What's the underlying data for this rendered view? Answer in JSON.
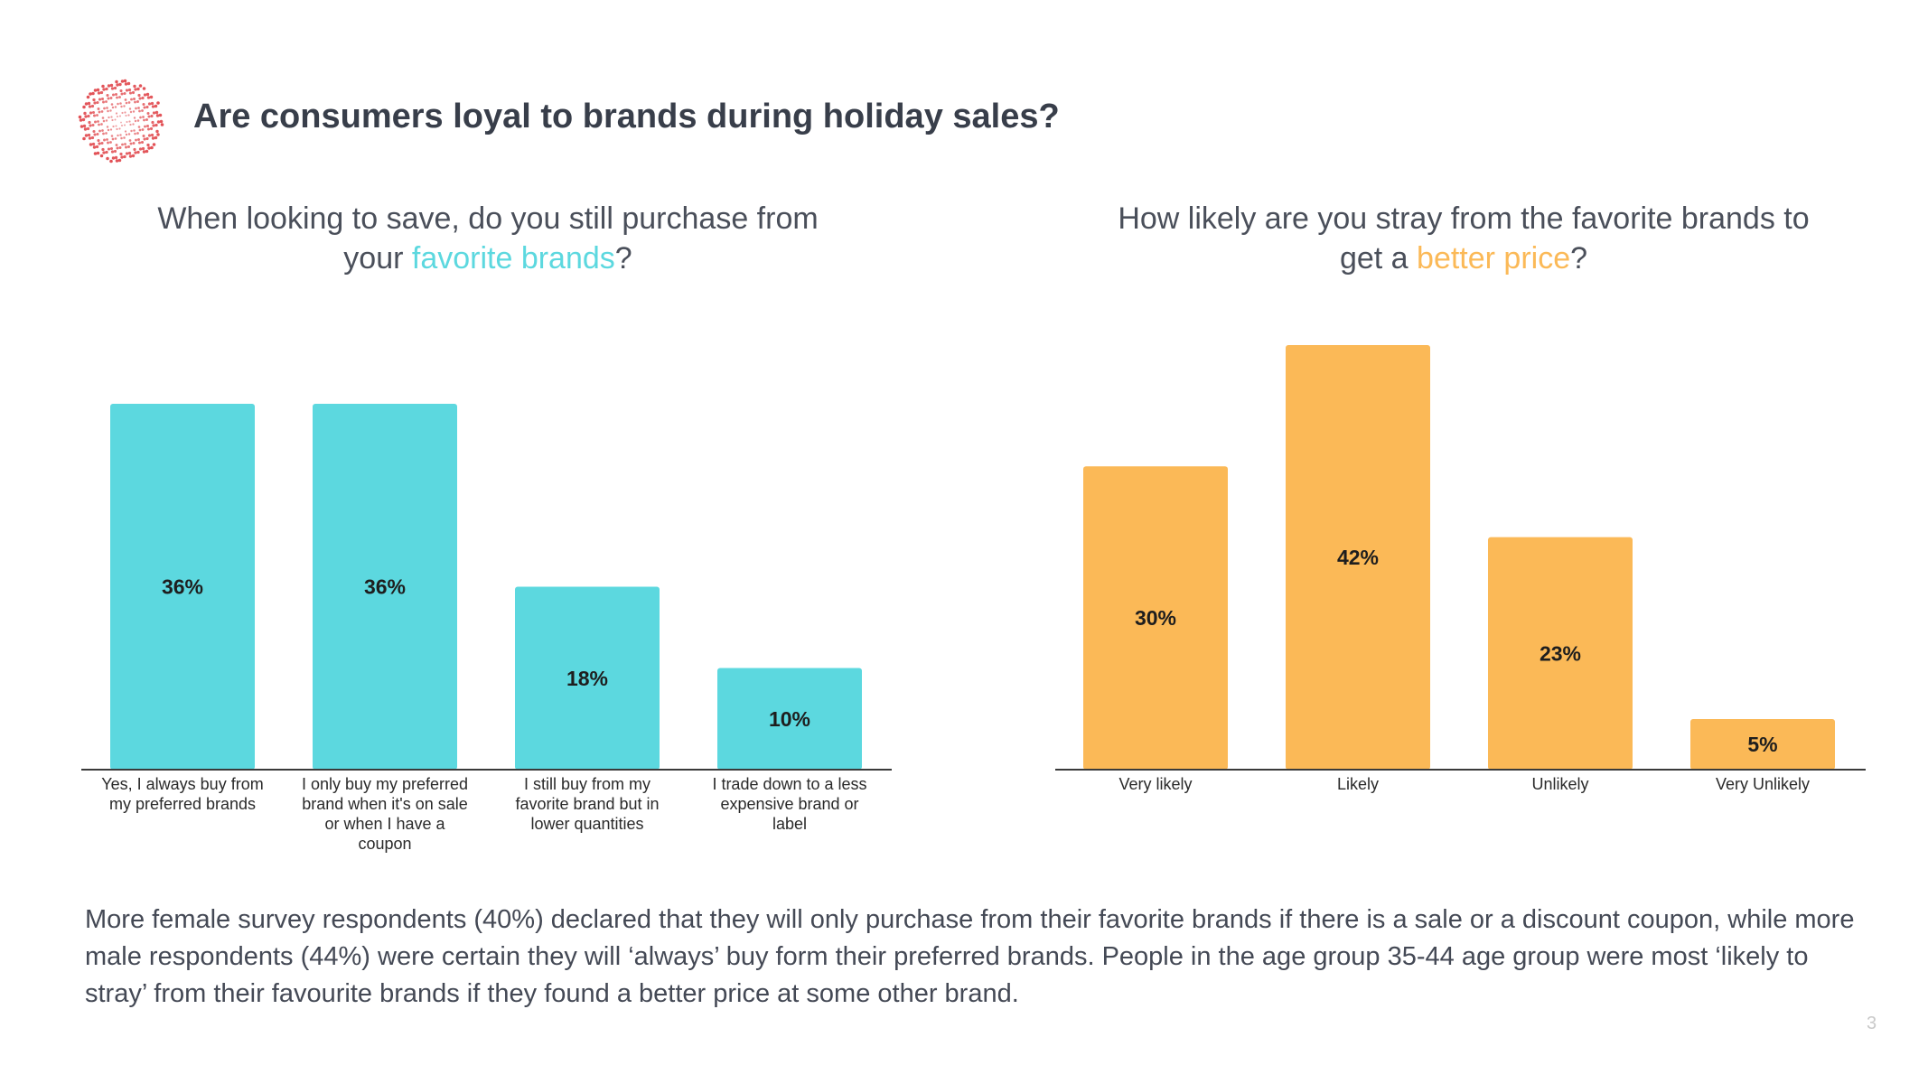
{
  "title": "Are consumers loyal to brands during holiday sales?",
  "left_panel": {
    "subtitle_line1": "When looking to save, do you still purchase from",
    "subtitle_pre": "your ",
    "subtitle_highlight": "favorite brands",
    "subtitle_post": "?"
  },
  "right_panel": {
    "subtitle_line1": "How likely are you stray from the favorite brands to",
    "subtitle_pre": "get a ",
    "subtitle_highlight": "better price",
    "subtitle_post": "?"
  },
  "colors": {
    "teal": "#5cd8df",
    "orange": "#fbb957",
    "title": "#383e4a",
    "logo_dots": "#e0474c"
  },
  "chart_data": [
    {
      "type": "bar",
      "color": "#5cd8df",
      "categories": [
        [
          "Yes, I always buy from",
          "my preferred brands"
        ],
        [
          "I only buy my preferred",
          "brand when it's on sale",
          "or when I have a",
          "coupon"
        ],
        [
          "I still buy from my",
          "favorite brand but in",
          "lower quantities"
        ],
        [
          "I trade down to a less",
          "expensive brand or",
          "label"
        ]
      ],
      "values": [
        36,
        36,
        18,
        10
      ],
      "value_labels": [
        "36%",
        "36%",
        "18%",
        "10%"
      ],
      "ylim": [
        0,
        36
      ],
      "grid": false,
      "legend": "none"
    },
    {
      "type": "bar",
      "color": "#fbb957",
      "categories": [
        [
          "Very likely"
        ],
        [
          "Likely"
        ],
        [
          "Unlikely"
        ],
        [
          "Very Unlikely"
        ]
      ],
      "values": [
        30,
        42,
        23,
        5
      ],
      "value_labels": [
        "30%",
        "42%",
        "23%",
        "5%"
      ],
      "ylim": [
        0,
        42
      ],
      "grid": false,
      "legend": "none"
    }
  ],
  "footnote": "More female survey respondents (40%) declared that they will only purchase from their favorite brands if there is a sale or a discount coupon, while more male respondents (44%) were certain they will ‘always’ buy form their preferred brands. People in the age group 35-44 age group were most ‘likely to stray’ from their favourite brands if they found a better price at some other brand.",
  "page_number": "3"
}
